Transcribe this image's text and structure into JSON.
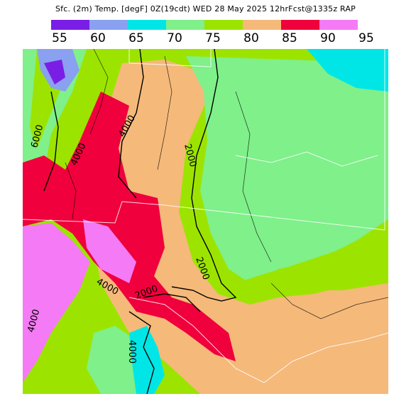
{
  "title": "Sfc. (2m) Temp. [degF] 0Z(19cdt) WED 28 May 2025 12hrFcst@1335z RAP",
  "colorbar": {
    "colors": [
      "#7a1ee6",
      "#8aa0f0",
      "#00e6e6",
      "#7ff08a",
      "#9ce400",
      "#f5b97a",
      "#f0003c",
      "#f57af5"
    ],
    "labels": [
      "55",
      "60",
      "65",
      "70",
      "75",
      "80",
      "85",
      "90",
      "95"
    ]
  },
  "contour_labels": [
    "6000",
    "4000",
    "4000",
    "2000",
    "2000",
    "2000",
    "4000",
    "4000",
    "4000"
  ],
  "palette": {
    "t55": "#7a1ee6",
    "t60": "#8aa0f0",
    "t65": "#00e6e6",
    "t70": "#7ff08a",
    "t75": "#9ce400",
    "t80": "#f5b97a",
    "t85": "#f0003c",
    "t90": "#f57af5"
  }
}
